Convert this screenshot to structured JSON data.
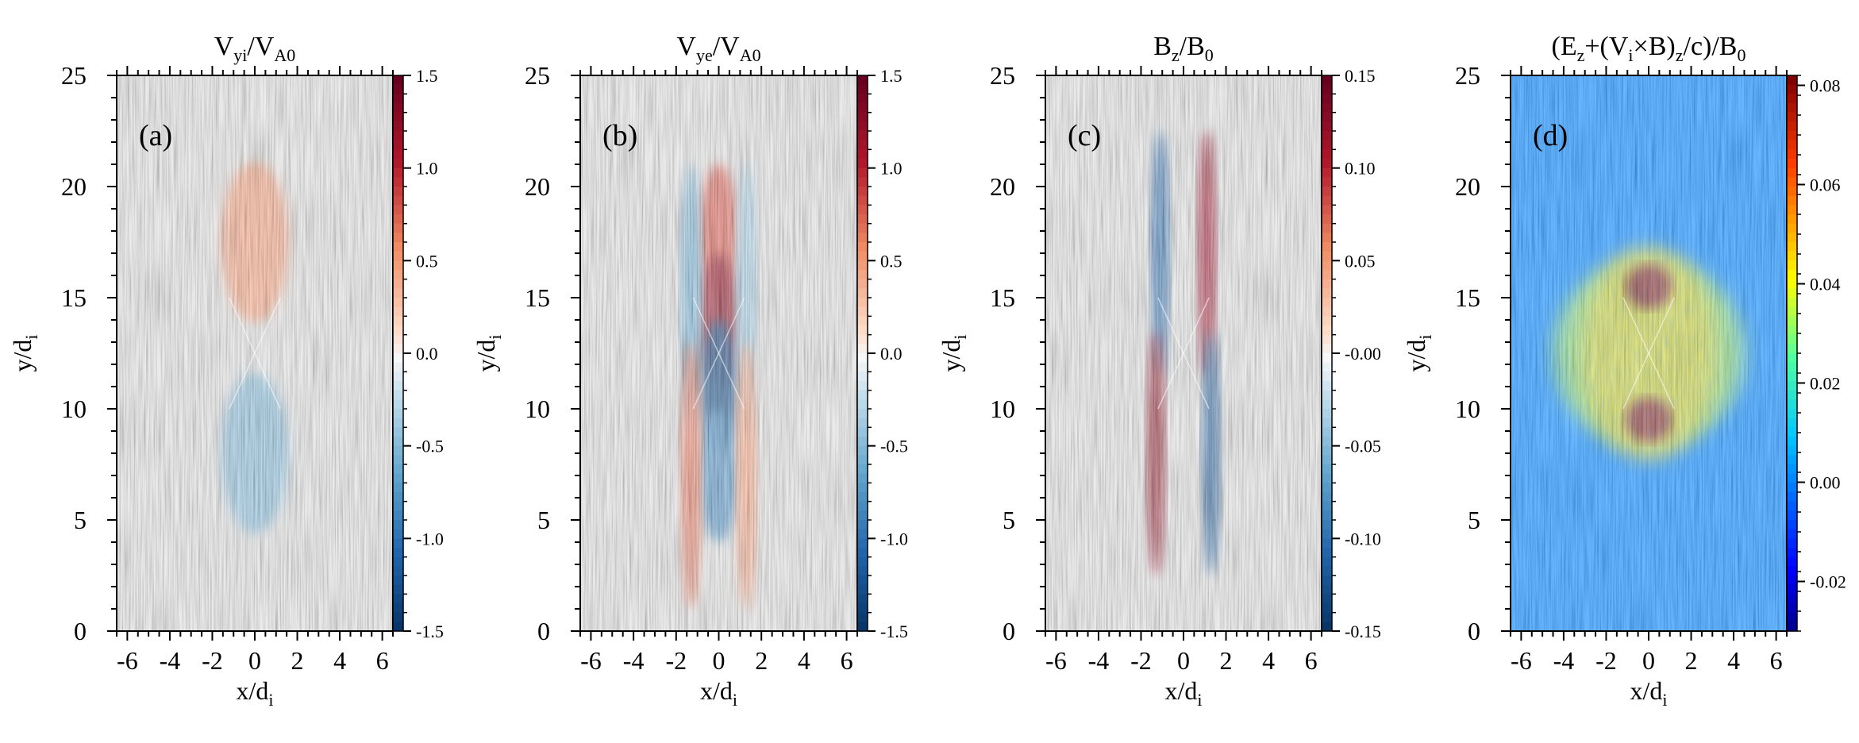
{
  "chart_data": [
    {
      "type": "heatmap",
      "panel_label": "(a)",
      "title": "V_yi/V_A0",
      "title_main": "V",
      "title_sub1": "yi",
      "title_mid": "/V",
      "title_sub2": "A0",
      "title_tail": "",
      "xlabel_main": "x/d",
      "xlabel_sub": "i",
      "ylabel_main": "y/d",
      "ylabel_sub": "i",
      "xlim": [
        -6.5,
        6.5
      ],
      "ylim": [
        0,
        25
      ],
      "xticks": [
        -6,
        -4,
        -2,
        0,
        2,
        4,
        6
      ],
      "yticks": [
        0,
        5,
        10,
        15,
        20,
        25
      ],
      "colormap": "RdBu_r",
      "clim": [
        -1.5,
        1.5
      ],
      "colorbar_ticks": [
        "1.5",
        "1.0",
        "0.5",
        "0.0",
        "-0.5",
        "-1.0",
        "-1.5"
      ],
      "colorbar_tick_values": [
        1.5,
        1.0,
        0.5,
        0.0,
        -0.5,
        -1.0,
        -1.5
      ],
      "features": [
        {
          "x": 0,
          "y": 17.5,
          "value": 0.5
        },
        {
          "x": 0,
          "y": 8,
          "value": -0.5
        }
      ],
      "background": "grey field-line streaks (LIC texture)"
    },
    {
      "type": "heatmap",
      "panel_label": "(b)",
      "title": "V_ye/V_A0",
      "title_main": "V",
      "title_sub1": "ye",
      "title_mid": "/V",
      "title_sub2": "A0",
      "title_tail": "",
      "xlabel_main": "x/d",
      "xlabel_sub": "i",
      "ylabel_main": "y/d",
      "ylabel_sub": "i",
      "xlim": [
        -6.5,
        6.5
      ],
      "ylim": [
        0,
        25
      ],
      "xticks": [
        -6,
        -4,
        -2,
        0,
        2,
        4,
        6
      ],
      "yticks": [
        0,
        5,
        10,
        15,
        20,
        25
      ],
      "colormap": "RdBu_r",
      "clim": [
        -1.5,
        1.5
      ],
      "colorbar_ticks": [
        "1.5",
        "1.0",
        "0.5",
        "0.0",
        "-0.5",
        "-1.0",
        "-1.5"
      ],
      "colorbar_tick_values": [
        1.5,
        1.0,
        0.5,
        0.0,
        -0.5,
        -1.0,
        -1.5
      ],
      "features": [
        {
          "x": 0,
          "y": 18,
          "value": 0.8
        },
        {
          "x": 0,
          "y": 14,
          "value": 1.3
        },
        {
          "x": -1.3,
          "y": 15,
          "value": -0.6
        },
        {
          "x": 1.3,
          "y": 15,
          "value": -0.4
        },
        {
          "x": 0,
          "y": 11,
          "value": -1.3
        },
        {
          "x": 0,
          "y": 7,
          "value": -0.8
        },
        {
          "x": -1.3,
          "y": 7,
          "value": 0.7
        },
        {
          "x": 1.3,
          "y": 7,
          "value": 0.5
        }
      ],
      "background": "grey field-line streaks (LIC texture)"
    },
    {
      "type": "heatmap",
      "panel_label": "(c)",
      "title": "B_z/B_0",
      "title_main": "B",
      "title_sub1": "z",
      "title_mid": "/B",
      "title_sub2": "0",
      "title_tail": "",
      "xlabel_main": "x/d",
      "xlabel_sub": "i",
      "ylabel_main": "y/d",
      "ylabel_sub": "i",
      "xlim": [
        -6.5,
        6.5
      ],
      "ylim": [
        0,
        25
      ],
      "xticks": [
        -6,
        -4,
        -2,
        0,
        2,
        4,
        6
      ],
      "yticks": [
        0,
        5,
        10,
        15,
        20,
        25
      ],
      "colormap": "RdBu_r",
      "clim": [
        -0.15,
        0.15
      ],
      "colorbar_ticks": [
        "0.15",
        "0.10",
        "0.05",
        "-0.00",
        "-0.05",
        "-0.10",
        "-0.15"
      ],
      "colorbar_tick_values": [
        0.15,
        0.1,
        0.05,
        0.0,
        -0.05,
        -0.1,
        -0.15
      ],
      "features": [
        {
          "x": -1.1,
          "y": 17,
          "value": -0.11
        },
        {
          "x": 1.1,
          "y": 17,
          "value": 0.12
        },
        {
          "x": -1.3,
          "y": 8,
          "value": 0.13
        },
        {
          "x": 1.3,
          "y": 8,
          "value": -0.12
        }
      ],
      "background": "grey field-line streaks (LIC texture)"
    },
    {
      "type": "heatmap",
      "panel_label": "(d)",
      "title": "(E_z+(V_i×B)_z/c)/B_0",
      "title_main": "(E",
      "title_sub1": "z",
      "title_mid": "+(V",
      "title_sub2": "i",
      "title_tail": "",
      "title_parts": [
        {
          "t": "(E",
          "sub": false
        },
        {
          "t": "z",
          "sub": true
        },
        {
          "t": "+(V",
          "sub": false
        },
        {
          "t": "i",
          "sub": true
        },
        {
          "t": "×B)",
          "sub": false
        },
        {
          "t": "z",
          "sub": true
        },
        {
          "t": "/c)/B",
          "sub": false
        },
        {
          "t": "0",
          "sub": true
        }
      ],
      "xlabel_main": "x/d",
      "xlabel_sub": "i",
      "ylabel_main": "y/d",
      "ylabel_sub": "i",
      "xlim": [
        -6.5,
        6.5
      ],
      "ylim": [
        0,
        25
      ],
      "xticks": [
        -6,
        -4,
        -2,
        0,
        2,
        4,
        6
      ],
      "yticks": [
        0,
        5,
        10,
        15,
        20,
        25
      ],
      "colormap": "jet",
      "clim": [
        -0.03,
        0.082
      ],
      "colorbar_ticks": [
        "0.08",
        "0.06",
        "0.04",
        "0.02",
        "0.00",
        "-0.02"
      ],
      "colorbar_tick_values": [
        0.08,
        0.06,
        0.04,
        0.02,
        0.0,
        -0.02
      ],
      "features": [
        {
          "x": 0,
          "y": 12.5,
          "value": 0.04
        },
        {
          "x": 0,
          "y": 15.5,
          "value": 0.08
        },
        {
          "x": 0,
          "y": 9.5,
          "value": 0.08
        }
      ],
      "background": "grey field-line streaks (LIC texture) over noisy colour field"
    }
  ]
}
